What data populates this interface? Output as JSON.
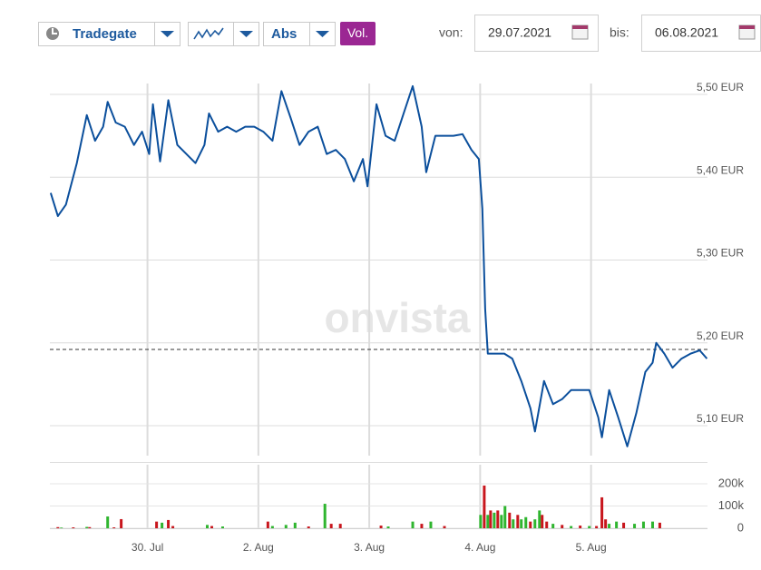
{
  "toolbar": {
    "exchange": "Tradegate",
    "mode": "Abs",
    "volume_button": "Vol.",
    "from_label": "von:",
    "from_date": "29.07.2021",
    "to_label": "bis:",
    "to_date": "06.08.2021"
  },
  "chart_data": {
    "type": "line",
    "watermark": "onvista",
    "x": [
      0.127,
      0.192,
      0.265,
      0.363,
      0.453,
      0.527,
      0.6,
      0.641,
      0.714,
      0.796,
      0.878,
      0.951,
      1.016,
      1.049,
      1.114,
      1.188,
      1.269,
      1.351,
      1.433,
      1.514,
      1.555,
      1.637,
      1.718,
      1.8,
      1.882,
      1.963,
      2.045,
      2.127,
      2.208,
      2.29,
      2.371,
      2.453,
      2.535,
      2.616,
      2.698,
      2.78,
      2.861,
      2.943,
      2.984,
      3.065,
      3.147,
      3.229,
      3.31,
      3.392,
      3.473,
      3.514,
      3.596,
      3.678,
      3.759,
      3.841,
      3.922,
      3.988,
      4.02,
      4.045,
      4.069,
      4.143,
      4.218,
      4.29,
      4.371,
      4.453,
      4.494,
      4.576,
      4.657,
      4.739,
      4.82,
      4.984,
      5.065,
      5.098,
      5.163,
      5.245,
      5.327,
      5.408,
      5.49,
      5.555,
      5.588,
      5.661,
      5.735,
      5.816,
      5.898,
      5.98,
      6.045
    ],
    "series": [
      {
        "color": "#0b4f9c",
        "values": [
          5.381,
          5.353,
          5.367,
          5.417,
          5.475,
          5.444,
          5.461,
          5.491,
          5.466,
          5.461,
          5.439,
          5.455,
          5.428,
          5.488,
          5.419,
          5.493,
          5.439,
          5.428,
          5.417,
          5.439,
          5.477,
          5.455,
          5.461,
          5.455,
          5.461,
          5.461,
          5.455,
          5.444,
          5.504,
          5.472,
          5.439,
          5.455,
          5.461,
          5.428,
          5.433,
          5.422,
          5.395,
          5.422,
          5.389,
          5.488,
          5.45,
          5.444,
          5.477,
          5.51,
          5.461,
          5.406,
          5.45,
          5.45,
          5.45,
          5.452,
          5.433,
          5.422,
          5.362,
          5.241,
          5.187,
          5.187,
          5.187,
          5.181,
          5.154,
          5.121,
          5.093,
          5.154,
          5.126,
          5.132,
          5.143,
          5.143,
          5.11,
          5.086,
          5.143,
          5.11,
          5.075,
          5.115,
          5.165,
          5.176,
          5.2,
          5.187,
          5.17,
          5.181,
          5.187,
          5.191,
          5.181
        ]
      }
    ],
    "reference_line": 5.192,
    "xlim": [
      0.12,
      6.05
    ],
    "xticks": [
      {
        "value": 1,
        "label": "30. Jul"
      },
      {
        "value": 2,
        "label": "2. Aug"
      },
      {
        "value": 3,
        "label": "3. Aug"
      },
      {
        "value": 4,
        "label": "4. Aug"
      },
      {
        "value": 5,
        "label": "5. Aug"
      }
    ],
    "ylim": [
      5.06,
      5.52
    ],
    "yticks": [
      {
        "value": 5.1,
        "label": "5,10 EUR"
      },
      {
        "value": 5.2,
        "label": "5,20 EUR"
      },
      {
        "value": 5.3,
        "label": "5,30 EUR"
      },
      {
        "value": 5.4,
        "label": "5,40 EUR"
      },
      {
        "value": 5.5,
        "label": "5,50 EUR"
      }
    ],
    "grid": true,
    "volume": {
      "x": [
        0.192,
        0.224,
        0.331,
        0.453,
        0.478,
        0.641,
        0.698,
        0.763,
        1.082,
        1.131,
        1.188,
        1.229,
        1.539,
        1.58,
        1.678,
        2.086,
        2.127,
        2.249,
        2.331,
        2.453,
        2.6,
        2.657,
        2.739,
        3.106,
        3.171,
        3.392,
        3.473,
        3.555,
        3.678,
        4.004,
        4.037,
        4.069,
        4.094,
        4.127,
        4.159,
        4.192,
        4.224,
        4.265,
        4.298,
        4.339,
        4.371,
        4.412,
        4.453,
        4.494,
        4.535,
        4.559,
        4.6,
        4.657,
        4.739,
        4.82,
        4.902,
        4.984,
        5.049,
        5.098,
        5.131,
        5.163,
        5.229,
        5.294,
        5.392,
        5.473,
        5.555,
        5.62
      ],
      "values": [
        5000,
        3000,
        4000,
        6000,
        5000,
        53000,
        4000,
        41000,
        30000,
        25000,
        37000,
        10000,
        15000,
        10000,
        8000,
        30000,
        10000,
        15000,
        25000,
        8000,
        110000,
        20000,
        20000,
        12000,
        8000,
        30000,
        20000,
        30000,
        10000,
        60000,
        192000,
        60000,
        80000,
        70000,
        80000,
        60000,
        100000,
        70000,
        40000,
        60000,
        40000,
        50000,
        30000,
        40000,
        80000,
        60000,
        30000,
        20000,
        15000,
        10000,
        12000,
        10000,
        10000,
        139000,
        40000,
        20000,
        30000,
        25000,
        20000,
        30000,
        30000,
        25000
      ],
      "colors": [
        "#c8161d",
        "#2fb52f",
        "#c8161d",
        "#2fb52f",
        "#c8161d",
        "#2fb52f",
        "#c8161d",
        "#c8161d",
        "#c8161d",
        "#2fb52f",
        "#c8161d",
        "#c8161d",
        "#2fb52f",
        "#c8161d",
        "#2fb52f",
        "#c8161d",
        "#2fb52f",
        "#2fb52f",
        "#2fb52f",
        "#c8161d",
        "#2fb52f",
        "#c8161d",
        "#c8161d",
        "#c8161d",
        "#2fb52f",
        "#2fb52f",
        "#c8161d",
        "#2fb52f",
        "#c8161d",
        "#2fb52f",
        "#c8161d",
        "#2fb52f",
        "#c8161d",
        "#2fb52f",
        "#c8161d",
        "#2fb52f",
        "#2fb52f",
        "#c8161d",
        "#2fb52f",
        "#c8161d",
        "#2fb52f",
        "#2fb52f",
        "#c8161d",
        "#2fb52f",
        "#2fb52f",
        "#c8161d",
        "#c8161d",
        "#2fb52f",
        "#c8161d",
        "#2fb52f",
        "#c8161d",
        "#2fb52f",
        "#c8161d",
        "#c8161d",
        "#c8161d",
        "#2fb52f",
        "#2fb52f",
        "#c8161d",
        "#2fb52f",
        "#2fb52f",
        "#2fb52f",
        "#c8161d"
      ],
      "ylim": [
        0,
        300000
      ],
      "yticks": [
        0,
        {
          "value": 100000,
          "label": "100k"
        },
        {
          "value": 200000,
          "label": "200k"
        }
      ]
    }
  }
}
